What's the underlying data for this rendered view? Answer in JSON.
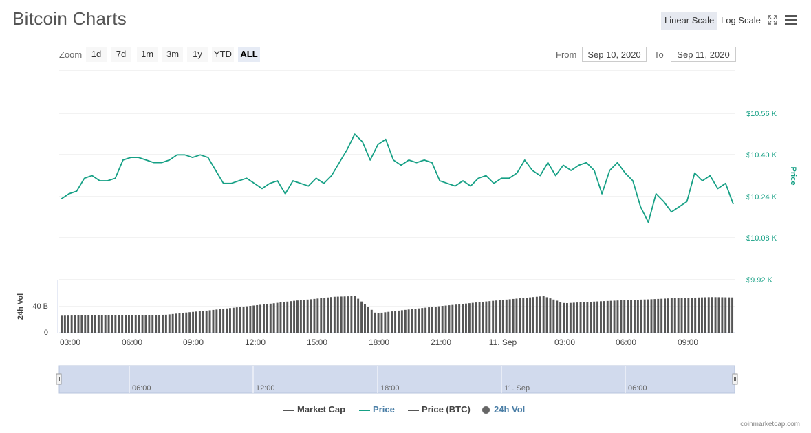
{
  "title": "Bitcoin Charts",
  "scale": {
    "linear": "Linear Scale",
    "log": "Log Scale",
    "selected": "Linear Scale"
  },
  "icons": {
    "fullscreen": "fullscreen-icon",
    "menu": "menu-icon"
  },
  "zoom": {
    "label": "Zoom",
    "buttons": [
      "1d",
      "7d",
      "1m",
      "3m",
      "1y",
      "YTD",
      "ALL"
    ],
    "selected": "ALL"
  },
  "range": {
    "from_label": "From",
    "from_value": "Sep 10, 2020",
    "to_label": "To",
    "to_value": "Sep 11, 2020"
  },
  "colors": {
    "price": "#16a085",
    "volume": "#555555",
    "navigator": "#ccd6eb",
    "market_cap": "#555555",
    "volume_legend": "#666666",
    "legend_blue": "#4a7ea6"
  },
  "chart_data": {
    "type": "line",
    "x_ticks": [
      "03:00",
      "06:00",
      "09:00",
      "12:00",
      "15:00",
      "18:00",
      "21:00",
      "11. Sep",
      "03:00",
      "06:00",
      "09:00"
    ],
    "price_axis": {
      "label": "Price",
      "ticks": [
        "$10.56 K",
        "$10.40 K",
        "$10.24 K",
        "$10.08 K",
        "$9.92 K"
      ],
      "ylim": [
        10.08,
        10.56
      ]
    },
    "volume_axis": {
      "label": "24h Vol",
      "ticks": [
        "40 B",
        "0"
      ]
    },
    "series": [
      {
        "name": "Price",
        "unit": "K USD",
        "values": [
          10.23,
          10.25,
          10.26,
          10.31,
          10.32,
          10.3,
          10.3,
          10.31,
          10.38,
          10.39,
          10.39,
          10.38,
          10.37,
          10.37,
          10.38,
          10.4,
          10.4,
          10.39,
          10.4,
          10.39,
          10.34,
          10.29,
          10.29,
          10.3,
          10.31,
          10.29,
          10.27,
          10.29,
          10.3,
          10.25,
          10.3,
          10.29,
          10.28,
          10.31,
          10.29,
          10.32,
          10.37,
          10.42,
          10.48,
          10.45,
          10.38,
          10.44,
          10.46,
          10.38,
          10.36,
          10.38,
          10.37,
          10.38,
          10.37,
          10.3,
          10.29,
          10.28,
          10.3,
          10.28,
          10.31,
          10.32,
          10.29,
          10.31,
          10.31,
          10.33,
          10.38,
          10.34,
          10.32,
          10.37,
          10.32,
          10.36,
          10.34,
          10.36,
          10.37,
          10.34,
          10.25,
          10.34,
          10.37,
          10.33,
          10.3,
          10.2,
          10.14,
          10.25,
          10.22,
          10.18,
          10.2,
          10.22,
          10.33,
          10.3,
          10.32,
          10.27,
          10.29,
          10.21
        ]
      },
      {
        "name": "24h Vol",
        "unit": "B USD",
        "values": [
          26.0,
          26.5,
          27.0,
          27.0,
          27.0,
          27.5,
          31.0,
          34.0,
          37.5,
          41.0,
          44.5,
          48.5,
          51.5,
          55.0,
          56.0,
          29.5,
          33.5,
          37.0,
          40.5,
          43.5,
          47.0,
          50.0,
          53.0,
          56.0,
          45.0,
          47.0,
          48.5,
          50.0,
          51.0,
          52.5,
          53.5,
          54.5,
          54.0
        ]
      }
    ],
    "legend": [
      "Market Cap",
      "Price",
      "Price (BTC)",
      "24h Vol"
    ]
  },
  "navigator": {
    "ticks": [
      "06:00",
      "12:00",
      "18:00",
      "11. Sep",
      "06:00"
    ]
  },
  "credits": "coinmarketcap.com"
}
